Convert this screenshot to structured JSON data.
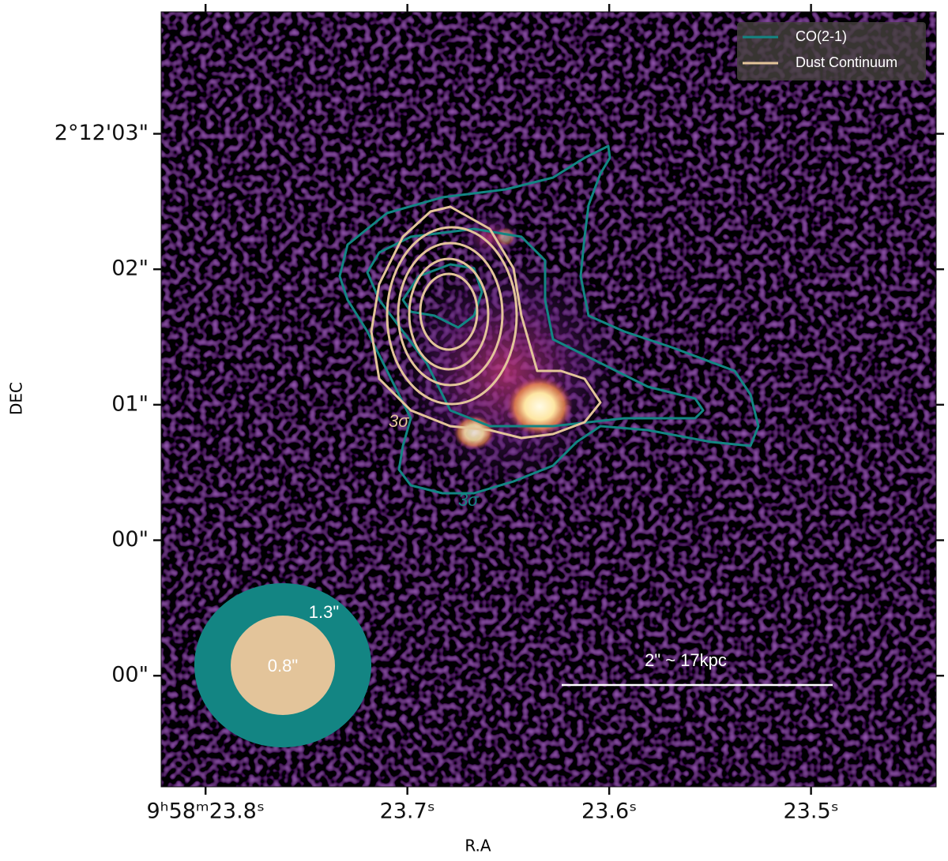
{
  "chart_data": {
    "type": "image",
    "xlabel": "R.A",
    "ylabel": "DEC",
    "xlim": [
      23.822,
      23.438
    ],
    "ylim": [
      -1.82,
      3.9
    ],
    "xticks": [
      {
        "value": 23.8,
        "label": "9ʰ58ᵐ23.8ˢ"
      },
      {
        "value": 23.7,
        "label": "23.7ˢ"
      },
      {
        "value": 23.6,
        "label": "23.6ˢ"
      },
      {
        "value": 23.5,
        "label": "23.5ˢ"
      }
    ],
    "yticks": [
      {
        "value": 3,
        "label": "2°12'03\""
      },
      {
        "value": 2,
        "label": "02\""
      },
      {
        "value": 1,
        "label": "01\""
      },
      {
        "value": 0,
        "label": "00\""
      },
      {
        "value": -1,
        "label": "00\""
      }
    ],
    "series": [
      {
        "name": "CO(2-1)",
        "color": "#138583"
      },
      {
        "name": "Dust Continuum",
        "color": "#e3c49a"
      }
    ],
    "legend_position": "upper right",
    "annotations": {
      "co_sigma": "3σ",
      "dust_sigma": "3σ",
      "co_beam": "1.3\"",
      "dust_beam": "0.8\"",
      "scale_bar": "2\" ~ 17kpc"
    }
  }
}
